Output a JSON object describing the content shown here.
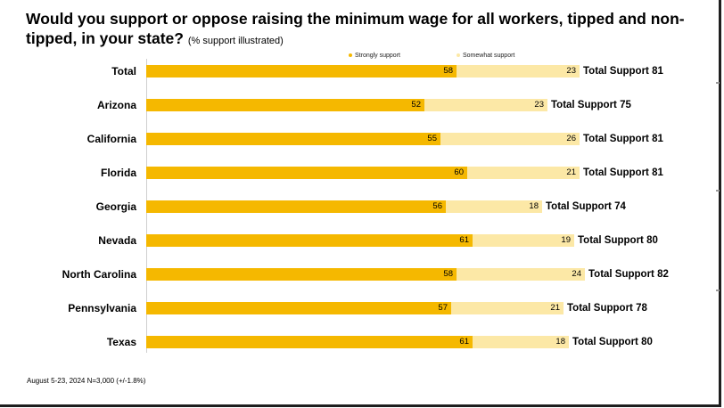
{
  "title": {
    "main": "Would you support or oppose raising the minimum wage for all workers, tipped and non-tipped, in your state?",
    "sub": "(% support illustrated)"
  },
  "footer": "August 5-23, 2024   N=3,000 (+/-1.8%)",
  "colors": {
    "strong": "#f5b800",
    "somewhat": "#fce8a6"
  },
  "chart_data": {
    "type": "bar",
    "orientation": "horizontal",
    "stacked": true,
    "title": "Would you support or oppose raising the minimum wage for all workers, tipped and non-tipped, in your state? (% support illustrated)",
    "categories": [
      "Total",
      "Arizona",
      "California",
      "Florida",
      "Georgia",
      "Nevada",
      "North Carolina",
      "Pennsylvania",
      "Texas"
    ],
    "series": [
      {
        "name": "Strongly support",
        "values": [
          58,
          52,
          55,
          60,
          56,
          61,
          58,
          57,
          61
        ]
      },
      {
        "name": "Somewhat support",
        "values": [
          23,
          23,
          26,
          21,
          18,
          19,
          24,
          21,
          18
        ]
      }
    ],
    "totals": [
      81,
      75,
      81,
      81,
      74,
      80,
      82,
      78,
      80
    ],
    "total_prefix": "Total Support",
    "xlim": [
      0,
      100
    ],
    "legend": "top"
  }
}
